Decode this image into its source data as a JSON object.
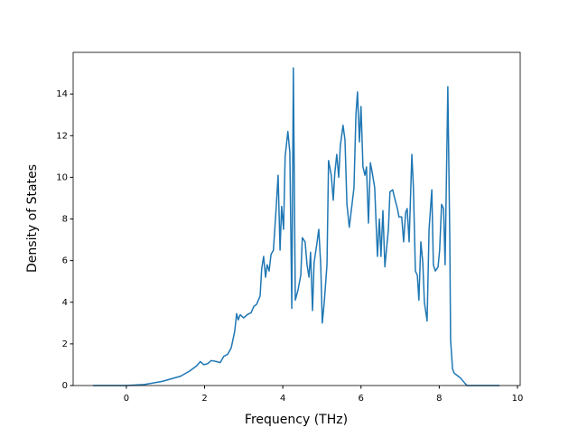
{
  "chart_data": {
    "type": "line",
    "xlabel": "Frequency (THz)",
    "ylabel": "Density of States",
    "color": "#1f77b4",
    "x": [
      -0.85,
      0,
      0.46,
      0.92,
      1.39,
      1.62,
      1.8,
      1.89,
      1.98,
      2.08,
      2.17,
      2.31,
      2.4,
      2.49,
      2.59,
      2.68,
      2.77,
      2.82,
      2.86,
      2.91,
      3.0,
      3.09,
      3.19,
      3.26,
      3.33,
      3.42,
      3.46,
      3.51,
      3.56,
      3.6,
      3.65,
      3.7,
      3.76,
      3.83,
      3.88,
      3.93,
      3.97,
      4.02,
      4.06,
      4.13,
      4.18,
      4.23,
      4.27,
      4.32,
      4.39,
      4.46,
      4.5,
      4.57,
      4.62,
      4.67,
      4.71,
      4.76,
      4.8,
      4.87,
      4.92,
      4.97,
      5.01,
      5.06,
      5.13,
      5.17,
      5.24,
      5.29,
      5.33,
      5.38,
      5.43,
      5.47,
      5.54,
      5.59,
      5.64,
      5.7,
      5.77,
      5.82,
      5.87,
      5.91,
      5.96,
      6.0,
      6.05,
      6.1,
      6.14,
      6.19,
      6.24,
      6.28,
      6.35,
      6.42,
      6.47,
      6.51,
      6.56,
      6.61,
      6.65,
      6.7,
      6.74,
      6.81,
      6.86,
      6.93,
      6.97,
      7.04,
      7.09,
      7.14,
      7.18,
      7.23,
      7.3,
      7.34,
      7.39,
      7.44,
      7.48,
      7.53,
      7.58,
      7.62,
      7.69,
      7.74,
      7.81,
      7.85,
      7.9,
      7.97,
      8.01,
      8.06,
      8.11,
      8.15,
      8.22,
      8.27,
      8.29,
      8.34,
      8.38,
      8.55,
      8.66,
      8.71,
      9.54
    ],
    "values": [
      0,
      0,
      0.05,
      0.2,
      0.45,
      0.7,
      0.95,
      1.15,
      1.0,
      1.05,
      1.2,
      1.15,
      1.1,
      1.4,
      1.5,
      1.8,
      2.6,
      3.45,
      3.15,
      3.4,
      3.25,
      3.4,
      3.5,
      3.8,
      3.9,
      4.3,
      5.6,
      6.2,
      5.2,
      5.8,
      5.5,
      6.3,
      6.5,
      8.5,
      10.1,
      6.5,
      8.6,
      7.5,
      11.0,
      12.2,
      11.2,
      3.7,
      15.25,
      4.1,
      4.6,
      5.3,
      7.1,
      6.9,
      5.8,
      5.2,
      6.4,
      3.6,
      5.9,
      6.8,
      7.5,
      5.8,
      3.0,
      4.0,
      5.8,
      10.8,
      10.1,
      8.9,
      10.2,
      11.1,
      10.0,
      11.5,
      12.5,
      11.8,
      8.7,
      7.6,
      8.7,
      9.5,
      13.0,
      14.1,
      11.7,
      13.4,
      10.5,
      10.1,
      10.5,
      7.8,
      10.7,
      10.3,
      9.5,
      6.2,
      8.0,
      6.2,
      8.4,
      5.7,
      6.5,
      7.5,
      9.3,
      9.4,
      9.0,
      8.5,
      8.1,
      8.1,
      6.9,
      8.3,
      8.5,
      6.9,
      11.1,
      9.5,
      5.5,
      5.3,
      4.1,
      6.9,
      5.9,
      4.0,
      3.1,
      7.5,
      9.4,
      5.8,
      5.5,
      5.7,
      6.5,
      8.7,
      8.5,
      5.8,
      14.35,
      7.0,
      2.2,
      0.8,
      0.6,
      0.35,
      0.1,
      0,
      0
    ],
    "xlim": [
      -1.36,
      10.07
    ],
    "ylim": [
      0,
      16.0
    ],
    "xticks": [
      0,
      2,
      4,
      6,
      8,
      10
    ],
    "yticks": [
      0,
      2,
      4,
      6,
      8,
      10,
      12,
      14
    ]
  }
}
